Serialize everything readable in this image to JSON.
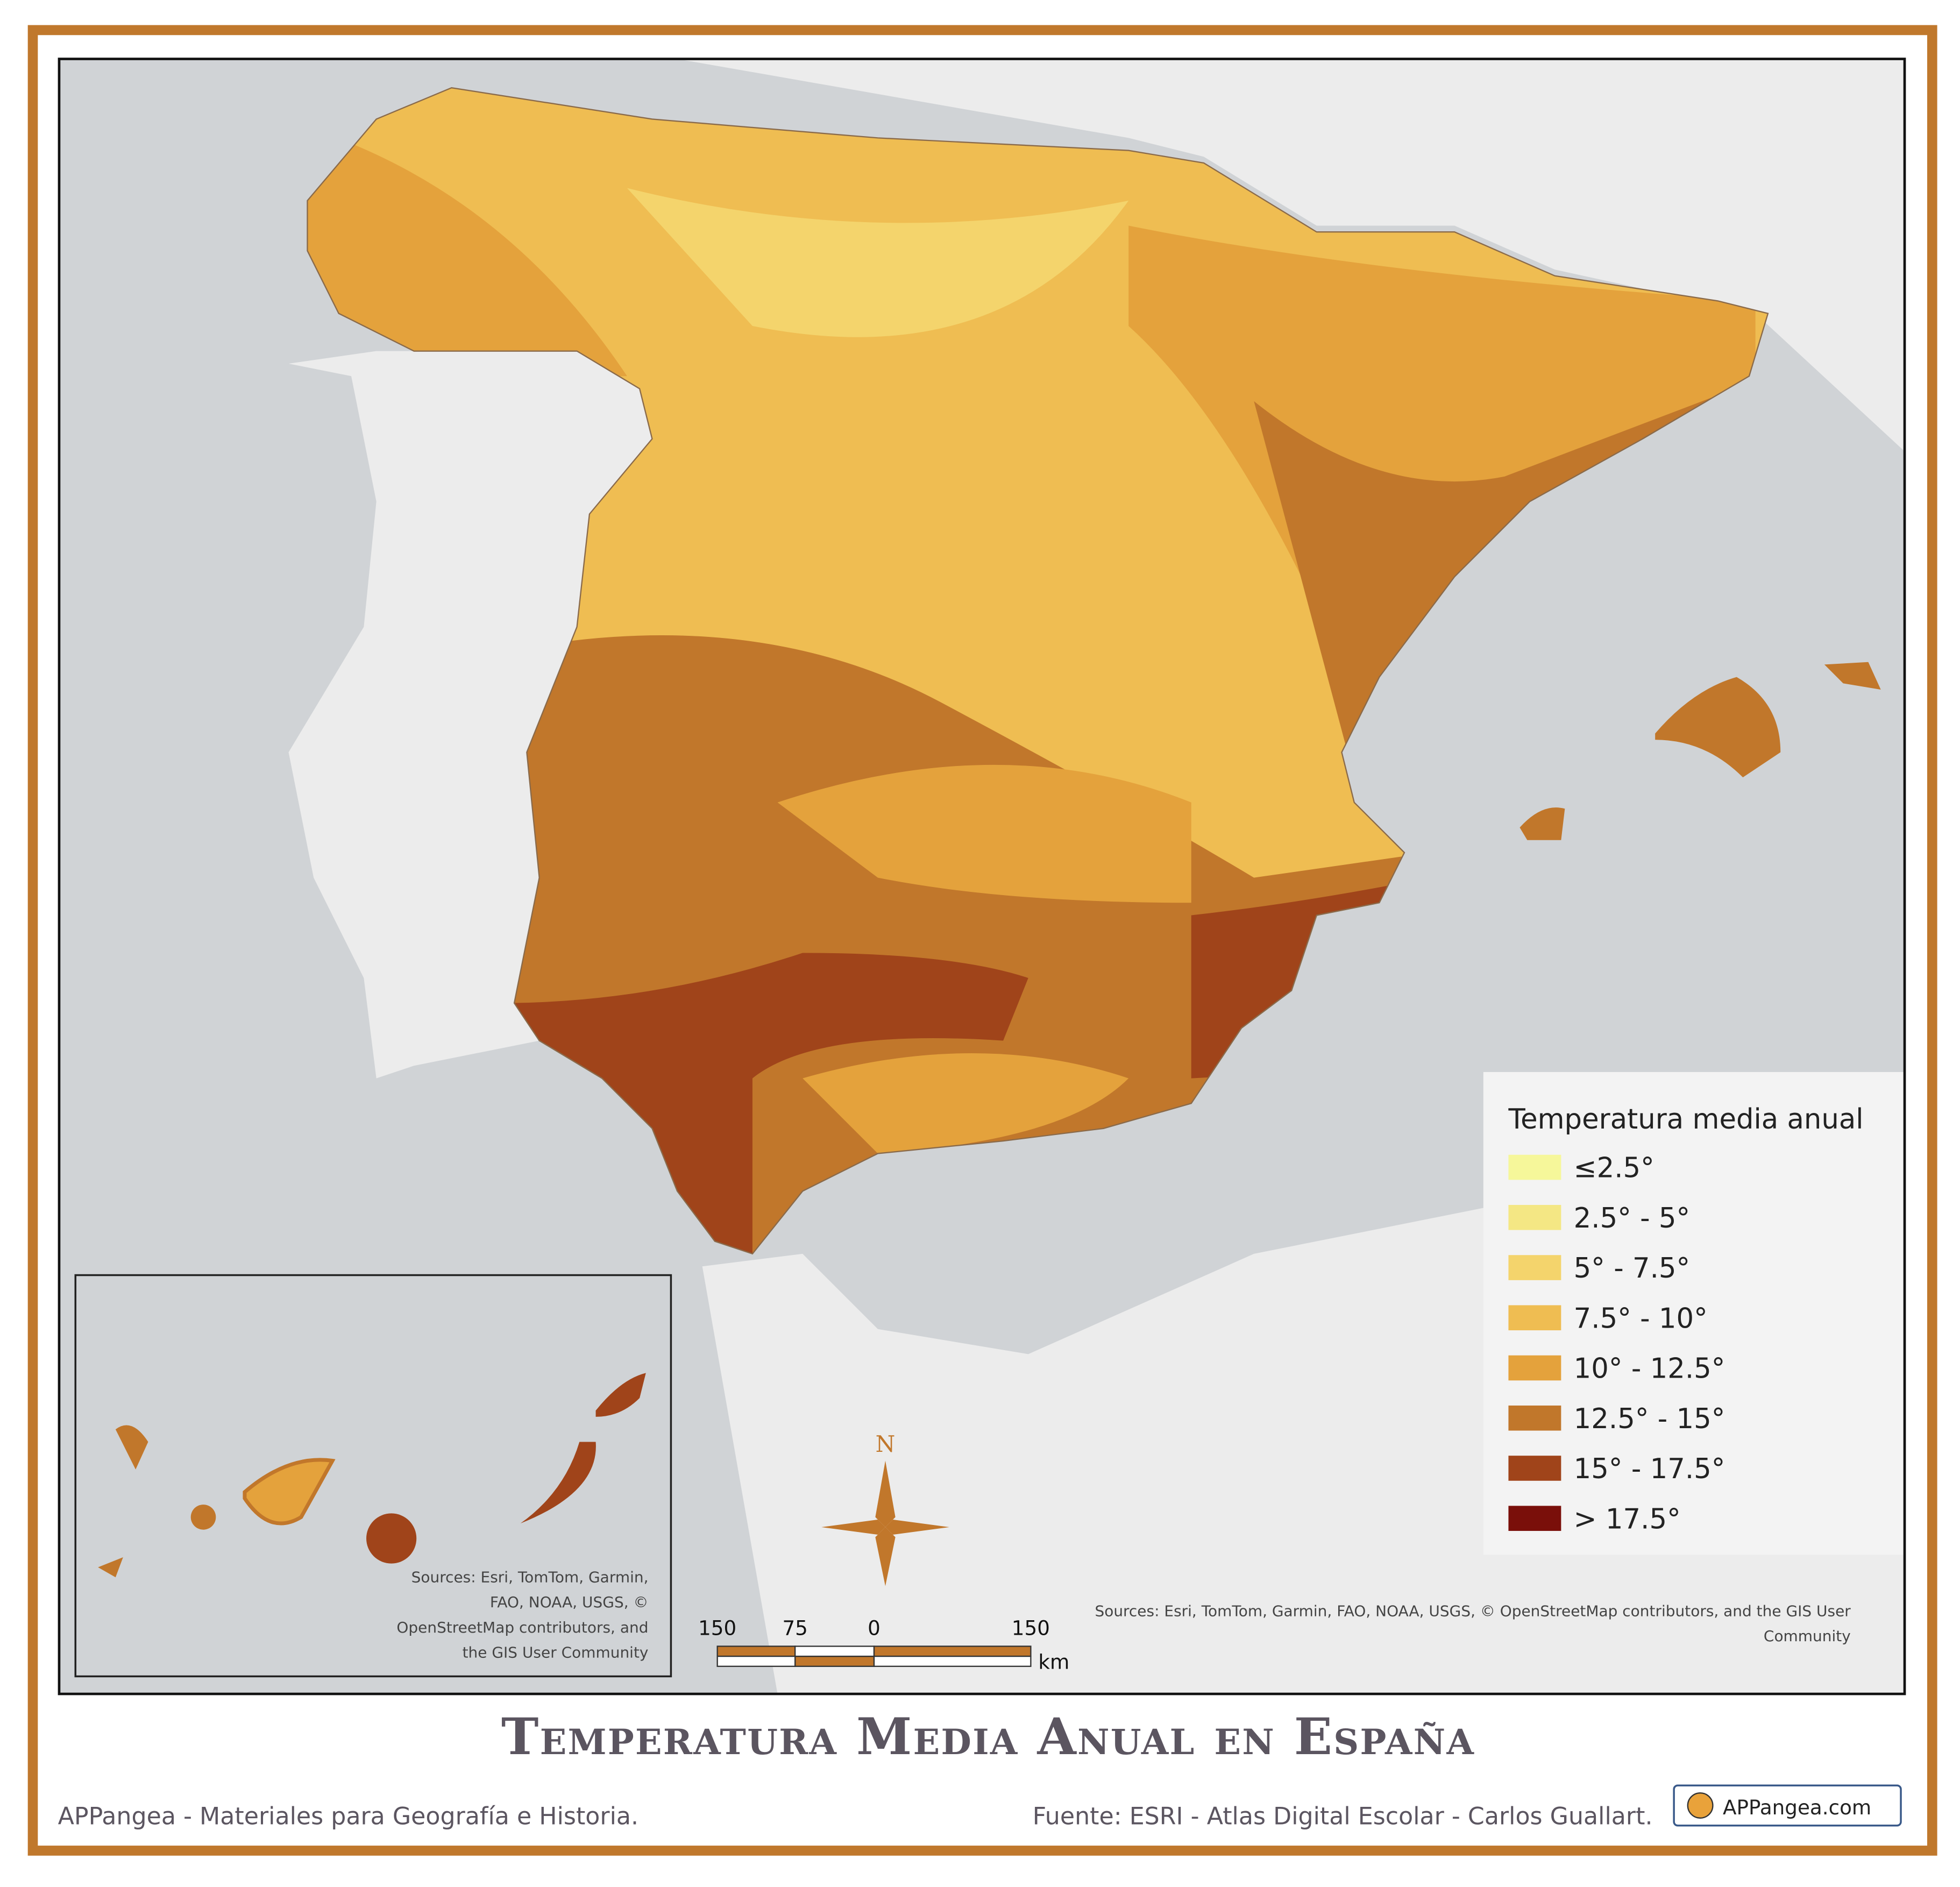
{
  "title": "Temperatura Media Anual en España",
  "legend": {
    "title": "Temperatura media anual",
    "items": [
      {
        "label": "≤2.5°",
        "color": "#f6f79a"
      },
      {
        "label": "2.5° - 5°",
        "color": "#f4e784"
      },
      {
        "label": "5° - 7.5°",
        "color": "#f4d46c"
      },
      {
        "label": "7.5° - 10°",
        "color": "#efbd52"
      },
      {
        "label": "10° - 12.5°",
        "color": "#e4a23c"
      },
      {
        "label": "12.5° - 15°",
        "color": "#c1772b"
      },
      {
        "label": "15° - 17.5°",
        "color": "#a0441a"
      },
      {
        "label": "> 17.5°",
        "color": "#7a0f0a"
      }
    ]
  },
  "map": {
    "attribution": [
      "Sources: Esri, TomTom, Garmin, FAO, NOAA, USGS, © OpenStreetMap contributors, and the GIS User",
      "Community"
    ],
    "inset_attribution": [
      "Sources: Esri, TomTom, Garmin,",
      "FAO, NOAA, USGS, ©",
      "OpenStreetMap contributors, and",
      "the GIS User Community"
    ],
    "north": "N",
    "scale_bar": {
      "labels": [
        "150",
        "75",
        "0",
        "150"
      ],
      "unit": "km"
    }
  },
  "footer": {
    "left": "APPangea - Materiales para Geografía e Historia.",
    "right": "Fuente: ESRI - Atlas Digital Escolar - Carlos Guallart.",
    "badge": "APPangea.com"
  }
}
